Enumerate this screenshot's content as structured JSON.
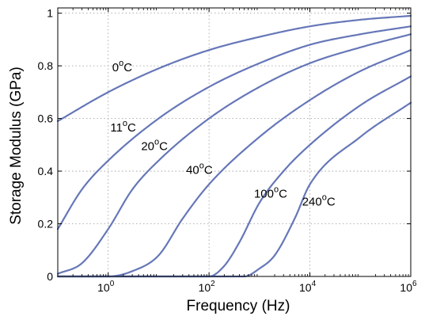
{
  "chart_data": {
    "type": "line",
    "title": "",
    "xlabel": "Frequency (Hz)",
    "ylabel": "Storage Modulus (GPa)",
    "xscale": "log",
    "xlim": [
      0.1,
      1000000
    ],
    "ylim": [
      0,
      1.02
    ],
    "xticks": [
      {
        "value": 1,
        "base": "10",
        "exp": "0"
      },
      {
        "value": 100,
        "base": "10",
        "exp": "2"
      },
      {
        "value": 10000,
        "base": "10",
        "exp": "4"
      },
      {
        "value": 1000000,
        "base": "10",
        "exp": "6"
      }
    ],
    "yticks": [
      {
        "value": 0,
        "label": "0"
      },
      {
        "value": 0.2,
        "label": "0.2"
      },
      {
        "value": 0.4,
        "label": "0.4"
      },
      {
        "value": 0.6,
        "label": "0.6"
      },
      {
        "value": 0.8,
        "label": "0.8"
      },
      {
        "value": 1,
        "label": "1"
      }
    ],
    "grid": true,
    "line_color": "#6677b8",
    "series": [
      {
        "name": "0",
        "unit": "C",
        "x": [
          0.1,
          1,
          10,
          100,
          1000,
          10000,
          100000,
          1000000
        ],
        "y": [
          0.59,
          0.7,
          0.79,
          0.86,
          0.91,
          0.95,
          0.975,
          0.99
        ]
      },
      {
        "name": "11",
        "unit": "C",
        "x": [
          0.1,
          0.3,
          1,
          10,
          100,
          1000,
          10000,
          100000,
          1000000
        ],
        "y": [
          0.18,
          0.33,
          0.44,
          0.6,
          0.72,
          0.81,
          0.88,
          0.92,
          0.95
        ]
      },
      {
        "name": "20",
        "unit": "C",
        "x": [
          0.1,
          0.3,
          1,
          3,
          10,
          100,
          1000,
          10000,
          100000,
          1000000
        ],
        "y": [
          0.01,
          0.05,
          0.18,
          0.33,
          0.44,
          0.6,
          0.72,
          0.81,
          0.87,
          0.92
        ]
      },
      {
        "name": "40",
        "unit": "C",
        "x": [
          0.1,
          1,
          3,
          10,
          30,
          100,
          1000,
          10000,
          100000,
          1000000
        ],
        "y": [
          0.0,
          0.0,
          0.02,
          0.08,
          0.22,
          0.35,
          0.53,
          0.67,
          0.78,
          0.86
        ]
      },
      {
        "name": "100",
        "unit": "C",
        "x": [
          0.1,
          100,
          200,
          400,
          1000,
          3000,
          10000,
          100000,
          1000000
        ],
        "y": [
          0.0,
          0.0,
          0.04,
          0.13,
          0.28,
          0.4,
          0.5,
          0.65,
          0.76
        ]
      },
      {
        "name": "240",
        "unit": "C",
        "x": [
          0.1,
          100,
          500,
          1000,
          2000,
          5000,
          10000,
          100000,
          1000000
        ],
        "y": [
          0.0,
          0.0,
          0.0,
          0.03,
          0.08,
          0.22,
          0.35,
          0.53,
          0.66
        ]
      }
    ],
    "annotations": [
      {
        "series": 0,
        "x": 1.2,
        "y": 0.78
      },
      {
        "series": 1,
        "x": 1.1,
        "y": 0.55
      },
      {
        "series": 2,
        "x": 4.5,
        "y": 0.48
      },
      {
        "series": 3,
        "x": 35,
        "y": 0.39
      },
      {
        "series": 4,
        "x": 780,
        "y": 0.3
      },
      {
        "series": 5,
        "x": 7000,
        "y": 0.27
      }
    ]
  }
}
